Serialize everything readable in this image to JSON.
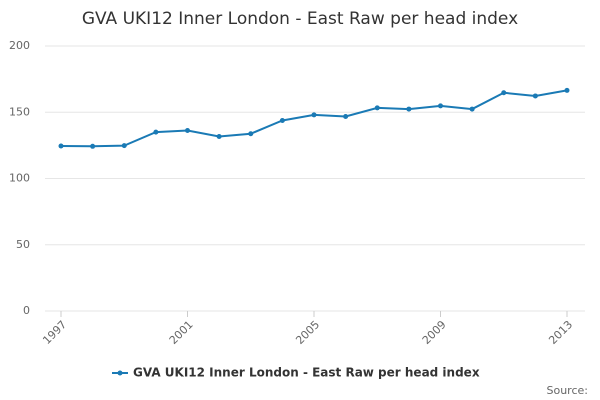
{
  "chart_data": {
    "type": "line",
    "title": "GVA UKI12 Inner London - East Raw per head index",
    "x": [
      1997,
      1998,
      1999,
      2000,
      2001,
      2002,
      2003,
      2004,
      2005,
      2006,
      2007,
      2008,
      2009,
      2010,
      2011,
      2012,
      2013
    ],
    "series": [
      {
        "name": "GVA UKI12 Inner London - East Raw per head index",
        "color": "#1a7ab5",
        "values": [
          124.5,
          124.3,
          124.8,
          135,
          136.2,
          131.7,
          133.8,
          143.8,
          148,
          146.8,
          153.3,
          152.4,
          154.8,
          152.4,
          164.7,
          162.3,
          166.5
        ]
      }
    ],
    "xlim": [
      1997,
      2013
    ],
    "xticks": [
      1997,
      2001,
      2005,
      2009,
      2013
    ],
    "ylim": [
      0,
      200
    ],
    "yticks": [
      0,
      50,
      100,
      150,
      200
    ],
    "grid": true,
    "legend": "bottom",
    "source": "Source:"
  }
}
